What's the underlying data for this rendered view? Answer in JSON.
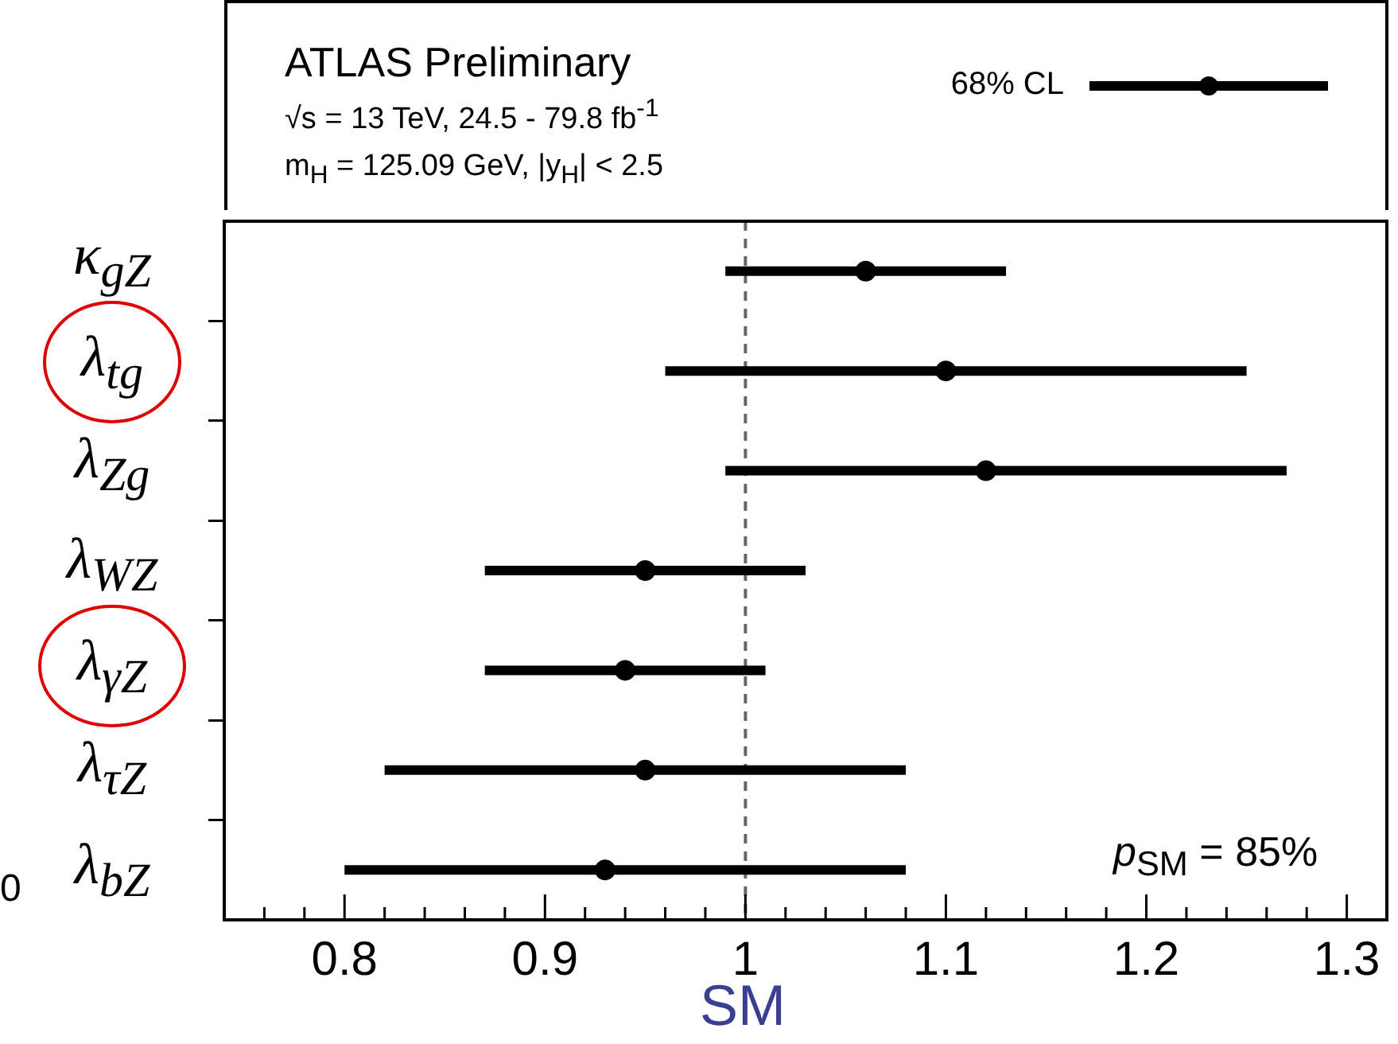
{
  "chart_data": {
    "type": "scatter",
    "orientation": "horizontal",
    "title": "ATLAS Preliminary",
    "subtitle": "√s = 13 TeV, 24.5 - 79.8 fb$^{-1}$\nm$_{H}$ = 125.09 GeV, |y$_{H}$| < 2.5",
    "xlabel": "SM",
    "categories": [
      "κ$_{gZ}$",
      "λ$_{tg}$",
      "λ$_{Zg}$",
      "λ$_{WZ}$",
      "λ$_{γZ}$",
      "λ$_{τZ}$",
      "λ$_{bZ}$"
    ],
    "series": [
      {
        "name": "68% CL",
        "color": "#000000",
        "values": [
          1.06,
          1.1,
          1.12,
          0.95,
          0.94,
          0.95,
          0.93
        ],
        "errors": [
          [
            0.99,
            1.13
          ],
          [
            0.96,
            1.25
          ],
          [
            0.99,
            1.27
          ],
          [
            0.87,
            1.03
          ],
          [
            0.87,
            1.01
          ],
          [
            0.82,
            1.08
          ],
          [
            0.8,
            1.08
          ]
        ]
      }
    ],
    "xlim": [
      0.74,
      1.32
    ],
    "xticks": [
      {
        "value": 0.76,
        "label": null
      },
      {
        "value": 0.78,
        "label": null
      },
      {
        "value": 0.8,
        "label": "0.8"
      },
      {
        "value": 0.82,
        "label": null
      },
      {
        "value": 0.84,
        "label": null
      },
      {
        "value": 0.86,
        "label": null
      },
      {
        "value": 0.88,
        "label": null
      },
      {
        "value": 0.9,
        "label": "0.9"
      },
      {
        "value": 0.92,
        "label": null
      },
      {
        "value": 0.94,
        "label": null
      },
      {
        "value": 0.96,
        "label": null
      },
      {
        "value": 0.98,
        "label": null
      },
      1,
      {
        "value": 1.02,
        "label": null
      },
      {
        "value": 1.04,
        "label": null
      },
      {
        "value": 1.06,
        "label": null
      },
      {
        "value": 1.08,
        "label": null
      },
      {
        "value": 1.1,
        "label": "1.1"
      },
      {
        "value": 1.12,
        "label": null
      },
      {
        "value": 1.14,
        "label": null
      },
      {
        "value": 1.16,
        "label": null
      },
      {
        "value": 1.18,
        "label": null
      },
      {
        "value": 1.2,
        "label": "1.2"
      },
      {
        "value": 1.22,
        "label": null
      },
      {
        "value": 1.24,
        "label": null
      },
      {
        "value": 1.26,
        "label": null
      },
      {
        "value": 1.28,
        "label": null
      },
      {
        "value": 1.3,
        "label": "1.3"
      }
    ],
    "ref_lines": [
      {
        "axis": "x",
        "value": 1,
        "color": "#666666",
        "line_style": "dashed"
      }
    ],
    "annotations": [
      "p$_{SM}$ = 85%",
      "0"
    ],
    "legend": "top right",
    "marker": "circle",
    "grid": false
  }
}
